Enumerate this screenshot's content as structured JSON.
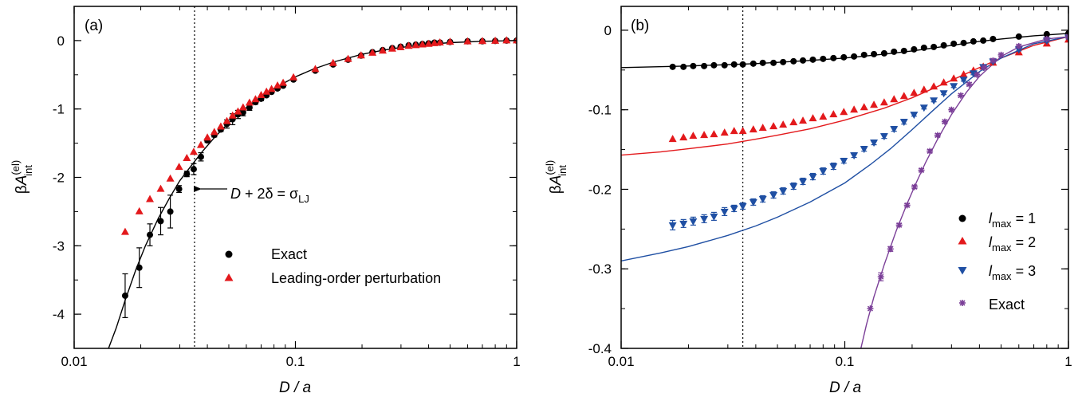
{
  "chart_data": [
    {
      "type": "scatter",
      "panel_label": "(a)",
      "xlabel": "D / a",
      "ylabel": "βA(el)int",
      "x_scale": "log",
      "xlim": [
        0.01,
        1
      ],
      "ylim": [
        -4.5,
        0.5
      ],
      "x_ticks": [
        0.01,
        0.1,
        1
      ],
      "x_tick_labels": [
        "0.01",
        "0.1",
        "1"
      ],
      "y_ticks": [
        0,
        -1,
        -2,
        -3,
        -4
      ],
      "y_tick_labels": [
        "0",
        "-1",
        "-2",
        "-3",
        "-4"
      ],
      "vline_x": 0.035,
      "annotation": "D + 2δ = σLJ",
      "annotation_parts": {
        "d": "D",
        "mid": " + 2δ = σ",
        "sub": "LJ"
      },
      "legend_position": "center-right",
      "series": [
        {
          "name": "Exact",
          "color": "#000000",
          "marker": "circle",
          "x": [
            0.017,
            0.0197,
            0.022,
            0.0246,
            0.0272,
            0.0298,
            0.0323,
            0.0347,
            0.0374,
            0.04,
            0.043,
            0.046,
            0.049,
            0.052,
            0.055,
            0.058,
            0.062,
            0.066,
            0.07,
            0.074,
            0.078,
            0.083,
            0.088,
            0.098,
            0.123,
            0.148,
            0.173,
            0.198,
            0.223,
            0.248,
            0.274,
            0.299,
            0.325,
            0.35,
            0.375,
            0.4,
            0.425,
            0.45,
            0.5,
            0.6,
            0.7,
            0.8,
            0.9,
            1.0
          ],
          "y": [
            -3.73,
            -3.32,
            -2.84,
            -2.64,
            -2.5,
            -2.17,
            -1.95,
            -1.88,
            -1.7,
            -1.46,
            -1.38,
            -1.3,
            -1.22,
            -1.15,
            -1.08,
            -1.05,
            -0.98,
            -0.9,
            -0.85,
            -0.8,
            -0.75,
            -0.7,
            -0.66,
            -0.57,
            -0.44,
            -0.35,
            -0.28,
            -0.22,
            -0.17,
            -0.14,
            -0.11,
            -0.09,
            -0.07,
            -0.06,
            -0.05,
            -0.04,
            -0.03,
            -0.03,
            -0.02,
            -0.01,
            -0.01,
            -0.005,
            0,
            0
          ],
          "err": [
            0.32,
            0.29,
            0.16,
            0.2,
            0.24,
            0.05,
            0.04,
            0.08,
            0.06,
            0.03,
            0.03,
            0.03,
            0.06,
            0.08,
            0.06,
            0.05,
            0.04,
            0.03,
            0.03,
            0.02,
            0.02,
            0.02,
            0.02,
            0,
            0,
            0,
            0,
            0,
            0,
            0,
            0,
            0,
            0,
            0,
            0,
            0,
            0,
            0,
            0,
            0,
            0,
            0,
            0,
            0
          ]
        },
        {
          "name": "Leading-order perturbation",
          "color": "#e3191c",
          "marker": "triangle-up",
          "x": [
            0.017,
            0.0197,
            0.022,
            0.0246,
            0.0272,
            0.0298,
            0.0323,
            0.0347,
            0.0374,
            0.04,
            0.043,
            0.046,
            0.049,
            0.052,
            0.055,
            0.058,
            0.062,
            0.066,
            0.07,
            0.074,
            0.078,
            0.083,
            0.088,
            0.098,
            0.123,
            0.148,
            0.173,
            0.198,
            0.223,
            0.248,
            0.274,
            0.299,
            0.325,
            0.35,
            0.375,
            0.4,
            0.425,
            0.45,
            0.5,
            0.6,
            0.7,
            0.8,
            0.9,
            1.0
          ],
          "y": [
            -2.8,
            -2.5,
            -2.32,
            -2.17,
            -2.02,
            -1.85,
            -1.72,
            -1.63,
            -1.53,
            -1.42,
            -1.34,
            -1.26,
            -1.18,
            -1.1,
            -1.04,
            -0.98,
            -0.91,
            -0.86,
            -0.8,
            -0.75,
            -0.71,
            -0.66,
            -0.62,
            -0.54,
            -0.42,
            -0.33,
            -0.27,
            -0.22,
            -0.18,
            -0.15,
            -0.12,
            -0.1,
            -0.08,
            -0.07,
            -0.06,
            -0.05,
            -0.04,
            -0.03,
            -0.02,
            -0.015,
            -0.01,
            -0.005,
            0,
            0
          ]
        },
        {
          "name": "",
          "color": "#000000",
          "type": "line",
          "x": [
            0.0143,
            0.0155,
            0.017,
            0.019,
            0.021,
            0.024,
            0.027,
            0.03,
            0.034,
            0.038,
            0.043,
            0.05,
            0.06,
            0.07,
            0.08,
            0.1,
            0.12,
            0.15,
            0.2,
            0.25,
            0.3,
            0.4,
            0.5,
            0.7,
            1.0
          ],
          "y": [
            -4.5,
            -4.2,
            -3.8,
            -3.35,
            -3.0,
            -2.6,
            -2.3,
            -2.05,
            -1.82,
            -1.62,
            -1.42,
            -1.2,
            -0.98,
            -0.82,
            -0.7,
            -0.53,
            -0.42,
            -0.31,
            -0.2,
            -0.14,
            -0.1,
            -0.055,
            -0.03,
            -0.01,
            0
          ]
        }
      ]
    },
    {
      "type": "scatter",
      "panel_label": "(b)",
      "xlabel": "D / a",
      "ylabel": "βA(el)int",
      "x_scale": "log",
      "xlim": [
        0.01,
        1
      ],
      "ylim": [
        -0.4,
        0.03
      ],
      "x_ticks": [
        0.01,
        0.1,
        1
      ],
      "x_tick_labels": [
        "0.01",
        "0.1",
        "1"
      ],
      "y_ticks": [
        0,
        -0.1,
        -0.2,
        -0.3,
        -0.4
      ],
      "y_tick_labels": [
        "0",
        "-0.1",
        "-0.2",
        "-0.3",
        "-0.4"
      ],
      "vline_x": 0.035,
      "legend_position": "right",
      "series": [
        {
          "name": "lmax = 1",
          "legend_parts": {
            "l": "l",
            "sub": "max",
            "rest": " = 1"
          },
          "color": "#000000",
          "marker": "circle",
          "x": [
            0.017,
            0.019,
            0.021,
            0.0235,
            0.026,
            0.029,
            0.032,
            0.035,
            0.039,
            0.043,
            0.048,
            0.053,
            0.059,
            0.065,
            0.072,
            0.08,
            0.089,
            0.099,
            0.11,
            0.122,
            0.135,
            0.15,
            0.166,
            0.184,
            0.204,
            0.226,
            0.25,
            0.277,
            0.307,
            0.34,
            0.376,
            0.416,
            0.46,
            0.6,
            0.8,
            1.0
          ],
          "y": [
            -0.046,
            -0.046,
            -0.045,
            -0.045,
            -0.044,
            -0.044,
            -0.043,
            -0.043,
            -0.042,
            -0.041,
            -0.041,
            -0.04,
            -0.039,
            -0.038,
            -0.037,
            -0.036,
            -0.035,
            -0.034,
            -0.033,
            -0.031,
            -0.03,
            -0.029,
            -0.027,
            -0.026,
            -0.024,
            -0.022,
            -0.021,
            -0.019,
            -0.017,
            -0.016,
            -0.014,
            -0.013,
            -0.011,
            -0.008,
            -0.005,
            -0.004
          ]
        },
        {
          "name": "lmax = 2",
          "legend_parts": {
            "l": "l",
            "sub": "max",
            "rest": " = 2"
          },
          "color": "#e3191c",
          "marker": "triangle-up",
          "x": [
            0.017,
            0.019,
            0.021,
            0.0235,
            0.026,
            0.029,
            0.032,
            0.035,
            0.039,
            0.043,
            0.048,
            0.053,
            0.059,
            0.065,
            0.072,
            0.08,
            0.089,
            0.099,
            0.11,
            0.122,
            0.135,
            0.15,
            0.166,
            0.184,
            0.204,
            0.226,
            0.25,
            0.277,
            0.307,
            0.34,
            0.376,
            0.416,
            0.46,
            0.6,
            0.8,
            1.0
          ],
          "y": [
            -0.137,
            -0.135,
            -0.133,
            -0.132,
            -0.131,
            -0.129,
            -0.127,
            -0.127,
            -0.125,
            -0.123,
            -0.121,
            -0.119,
            -0.116,
            -0.114,
            -0.111,
            -0.109,
            -0.106,
            -0.103,
            -0.1,
            -0.097,
            -0.094,
            -0.091,
            -0.087,
            -0.083,
            -0.079,
            -0.075,
            -0.071,
            -0.066,
            -0.061,
            -0.056,
            -0.051,
            -0.046,
            -0.041,
            -0.028,
            -0.017,
            -0.012
          ]
        },
        {
          "name": "lmax = 3",
          "legend_parts": {
            "l": "l",
            "sub": "max",
            "rest": " = 3"
          },
          "color": "#1f4fa3",
          "marker": "triangle-down",
          "x": [
            0.017,
            0.019,
            0.021,
            0.0235,
            0.026,
            0.029,
            0.032,
            0.035,
            0.039,
            0.043,
            0.048,
            0.053,
            0.059,
            0.065,
            0.072,
            0.08,
            0.089,
            0.099,
            0.11,
            0.122,
            0.135,
            0.15,
            0.166,
            0.184,
            0.204,
            0.226,
            0.25,
            0.277,
            0.307,
            0.34,
            0.376,
            0.416,
            0.46,
            0.6,
            0.8,
            1.0
          ],
          "y": [
            -0.245,
            -0.243,
            -0.24,
            -0.237,
            -0.234,
            -0.228,
            -0.224,
            -0.221,
            -0.216,
            -0.212,
            -0.207,
            -0.202,
            -0.196,
            -0.19,
            -0.184,
            -0.177,
            -0.171,
            -0.164,
            -0.157,
            -0.149,
            -0.141,
            -0.133,
            -0.124,
            -0.115,
            -0.106,
            -0.097,
            -0.088,
            -0.079,
            -0.07,
            -0.062,
            -0.054,
            -0.046,
            -0.039,
            -0.024,
            -0.013,
            -0.009
          ],
          "err": [
            0.006,
            0.005,
            0.005,
            0.005,
            0.005,
            0.005,
            0.004,
            0.004,
            0.004,
            0.004,
            0.004,
            0.004,
            0.004,
            0.004,
            0.004,
            0.004,
            0.004,
            0.003,
            0.003,
            0.003,
            0.003,
            0.003,
            0.003,
            0.003,
            0.002,
            0.002,
            0.002,
            0.002,
            0.002,
            0.002,
            0.002,
            0.002,
            0.002,
            0.002,
            0.002,
            0.002
          ]
        },
        {
          "name": "Exact",
          "color": "#7b3f98",
          "marker": "asterisk",
          "x": [
            0.13,
            0.145,
            0.16,
            0.175,
            0.19,
            0.205,
            0.22,
            0.24,
            0.26,
            0.28,
            0.3,
            0.33,
            0.36,
            0.39,
            0.42,
            0.46,
            0.5,
            0.6,
            0.8,
            1.0
          ],
          "y": [
            -0.35,
            -0.31,
            -0.275,
            -0.245,
            -0.22,
            -0.197,
            -0.176,
            -0.152,
            -0.132,
            -0.115,
            -0.1,
            -0.082,
            -0.068,
            -0.056,
            -0.047,
            -0.038,
            -0.031,
            -0.02,
            -0.011,
            -0.008
          ],
          "err": [
            0,
            0.005,
            0.003,
            0.002,
            0.002,
            0.002,
            0.002,
            0.002,
            0.002,
            0.002,
            0.002,
            0.002,
            0.002,
            0.002,
            0.002,
            0.002,
            0.002,
            0.002,
            0.002,
            0.002
          ]
        },
        {
          "name": "",
          "color": "#000000",
          "type": "line",
          "x": [
            0.01,
            0.02,
            0.04,
            0.07,
            0.1,
            0.15,
            0.2,
            0.3,
            0.4,
            0.5,
            0.7,
            1.0
          ],
          "y": [
            -0.047,
            -0.045,
            -0.042,
            -0.038,
            -0.035,
            -0.03,
            -0.026,
            -0.019,
            -0.014,
            -0.011,
            -0.007,
            -0.004
          ]
        },
        {
          "name": "",
          "color": "#e3191c",
          "type": "line",
          "x": [
            0.01,
            0.015,
            0.02,
            0.03,
            0.04,
            0.05,
            0.07,
            0.1,
            0.15,
            0.2,
            0.3,
            0.4,
            0.5,
            0.7,
            1.0
          ],
          "y": [
            -0.157,
            -0.153,
            -0.149,
            -0.143,
            -0.137,
            -0.132,
            -0.124,
            -0.113,
            -0.098,
            -0.085,
            -0.063,
            -0.047,
            -0.035,
            -0.019,
            -0.008
          ]
        },
        {
          "name": "",
          "color": "#1f4fa3",
          "type": "line",
          "x": [
            0.01,
            0.015,
            0.02,
            0.03,
            0.04,
            0.05,
            0.07,
            0.1,
            0.13,
            0.16,
            0.2,
            0.25,
            0.3,
            0.4,
            0.5,
            0.7,
            1.0
          ],
          "y": [
            -0.29,
            -0.28,
            -0.272,
            -0.258,
            -0.246,
            -0.235,
            -0.216,
            -0.192,
            -0.169,
            -0.149,
            -0.125,
            -0.1,
            -0.08,
            -0.052,
            -0.035,
            -0.017,
            -0.008
          ]
        },
        {
          "name": "",
          "color": "#7b3f98",
          "type": "line",
          "x": [
            0.118,
            0.125,
            0.135,
            0.15,
            0.17,
            0.19,
            0.21,
            0.23,
            0.26,
            0.3,
            0.35,
            0.4,
            0.5,
            0.6,
            0.8,
            1.0
          ],
          "y": [
            -0.4,
            -0.37,
            -0.335,
            -0.295,
            -0.252,
            -0.218,
            -0.19,
            -0.166,
            -0.137,
            -0.106,
            -0.078,
            -0.058,
            -0.033,
            -0.021,
            -0.011,
            -0.008
          ]
        }
      ]
    }
  ]
}
